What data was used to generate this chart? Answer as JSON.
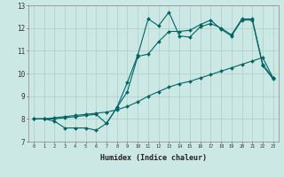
{
  "title": "",
  "xlabel": "Humidex (Indice chaleur)",
  "background_color": "#cce8e4",
  "grid_color": "#b0ccc8",
  "line_color": "#006666",
  "xlim": [
    -0.5,
    23.5
  ],
  "ylim": [
    7,
    13
  ],
  "xticks": [
    0,
    1,
    2,
    3,
    4,
    5,
    6,
    7,
    8,
    9,
    10,
    11,
    12,
    13,
    14,
    15,
    16,
    17,
    18,
    19,
    20,
    21,
    22,
    23
  ],
  "yticks": [
    7,
    8,
    9,
    10,
    11,
    12,
    13
  ],
  "line1_x": [
    0,
    1,
    2,
    3,
    4,
    5,
    6,
    7,
    8,
    9,
    10,
    11,
    12,
    13,
    14,
    15,
    16,
    17,
    18,
    19,
    20,
    21,
    22,
    23
  ],
  "line1_y": [
    8.0,
    8.0,
    7.9,
    7.6,
    7.6,
    7.6,
    7.5,
    7.8,
    8.5,
    9.6,
    10.8,
    12.4,
    12.1,
    12.7,
    11.65,
    11.6,
    12.05,
    12.2,
    12.0,
    11.7,
    12.4,
    12.4,
    10.4,
    9.8
  ],
  "line2_x": [
    0,
    1,
    2,
    3,
    4,
    5,
    6,
    7,
    8,
    9,
    10,
    11,
    12,
    13,
    14,
    15,
    16,
    17,
    18,
    19,
    20,
    21,
    22,
    23
  ],
  "line2_y": [
    8.0,
    8.0,
    8.05,
    8.1,
    8.15,
    8.2,
    8.25,
    8.3,
    8.4,
    8.55,
    8.75,
    9.0,
    9.2,
    9.4,
    9.55,
    9.65,
    9.8,
    9.95,
    10.1,
    10.25,
    10.4,
    10.55,
    10.7,
    9.8
  ],
  "line3_x": [
    0,
    1,
    2,
    3,
    4,
    5,
    6,
    7,
    8,
    9,
    10,
    11,
    12,
    13,
    14,
    15,
    16,
    17,
    18,
    19,
    20,
    21,
    22,
    23
  ],
  "line3_y": [
    8.0,
    8.0,
    8.0,
    8.05,
    8.1,
    8.15,
    8.2,
    7.8,
    8.5,
    9.2,
    10.75,
    10.85,
    11.4,
    11.85,
    11.85,
    11.9,
    12.15,
    12.35,
    11.95,
    11.65,
    12.35,
    12.35,
    10.35,
    9.75
  ]
}
